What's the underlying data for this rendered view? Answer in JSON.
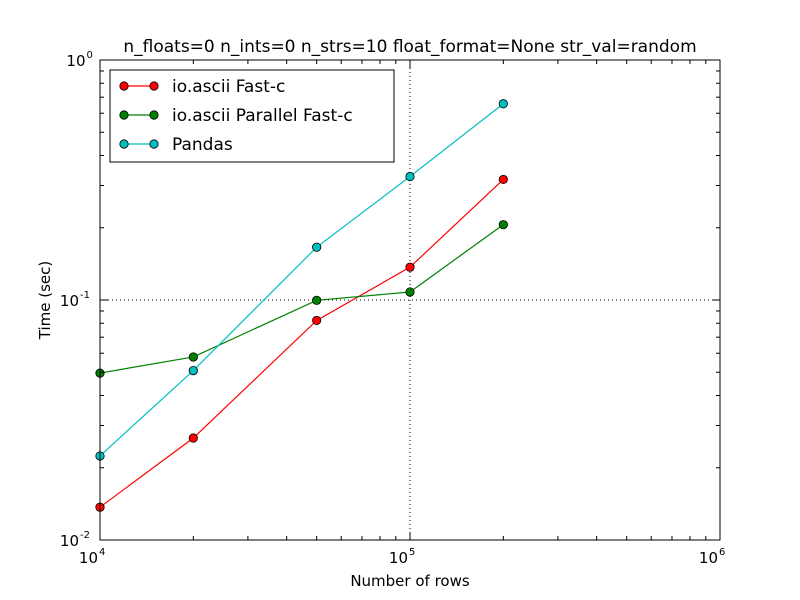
{
  "chart_data": {
    "type": "line",
    "title": "n_floats=0 n_ints=0 n_strs=10 float_format=None str_val=random",
    "xlabel": "Number of rows",
    "ylabel": "Time (sec)",
    "x_scale": "log",
    "y_scale": "log",
    "xlim": [
      10000,
      1000000
    ],
    "ylim": [
      0.01,
      1.0
    ],
    "x_ticks": [
      {
        "base": "10",
        "exp": "4",
        "value": 10000
      },
      {
        "base": "10",
        "exp": "5",
        "value": 100000
      },
      {
        "base": "10",
        "exp": "6",
        "value": 1000000
      }
    ],
    "y_ticks": [
      {
        "base": "10",
        "exp": "-2",
        "value": 0.01
      },
      {
        "base": "10",
        "exp": "-1",
        "value": 0.1
      },
      {
        "base": "10",
        "exp": "0",
        "value": 1.0
      }
    ],
    "grid": "major, dotted",
    "legend_position": "upper-left",
    "x": [
      10000,
      20000,
      50000,
      100000,
      200000
    ],
    "series": [
      {
        "name": "io.ascii Fast-c",
        "color": "#ff0000",
        "values": [
          0.0137,
          0.0266,
          0.0822,
          0.137,
          0.318
        ]
      },
      {
        "name": "io.ascii Parallel Fast-c",
        "color": "#008000",
        "values": [
          0.0496,
          0.0579,
          0.0997,
          0.108,
          0.206
        ]
      },
      {
        "name": "Pandas",
        "color": "#00bfbf",
        "values": [
          0.0224,
          0.0508,
          0.166,
          0.327,
          0.657
        ]
      }
    ]
  }
}
